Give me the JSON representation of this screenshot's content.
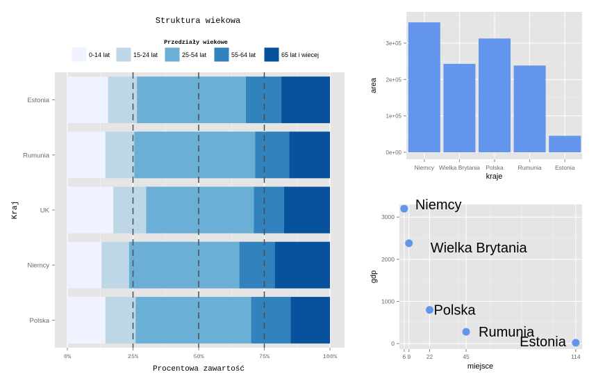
{
  "chart_data": [
    {
      "type": "bar",
      "orientation": "horizontal-stacked",
      "title": "Struktura wiekowa",
      "legend_title": "Przedziały wiekowe",
      "legend_position": "top",
      "xlabel": "Procentowa zawartość",
      "ylabel": "Kraj",
      "xlim": [
        0,
        100
      ],
      "x_ticks": [
        "0%",
        "25%",
        "50%",
        "75%",
        "100%"
      ],
      "reference_lines": [
        25,
        50,
        75
      ],
      "categories": [
        "Estonia",
        "Rumunia",
        "UK",
        "Niemcy",
        "Polska"
      ],
      "series": [
        {
          "name": "0-14 lat",
          "color": "#eff3ff",
          "values": [
            15.5,
            14.5,
            17.5,
            13,
            14.5
          ]
        },
        {
          "name": "15-24 lat",
          "color": "#bdd7e7",
          "values": [
            11,
            11,
            12.5,
            10.5,
            11.5
          ]
        },
        {
          "name": "25-54 lat",
          "color": "#6baed6",
          "values": [
            41.5,
            46,
            41,
            42,
            44
          ]
        },
        {
          "name": "55-64 lat",
          "color": "#3182bd",
          "values": [
            13.5,
            13,
            11.5,
            13.5,
            15
          ]
        },
        {
          "name": "65 lat i wiecej",
          "color": "#08519c",
          "values": [
            18.5,
            15.5,
            17.5,
            21,
            15
          ]
        }
      ],
      "grid": true
    },
    {
      "type": "bar",
      "title": "",
      "xlabel": "kraje",
      "ylabel": "area",
      "categories": [
        "Niemcy",
        "Wielka Brytania",
        "Polska",
        "Rumunia",
        "Estonia"
      ],
      "values": [
        357000,
        243000,
        312700,
        238400,
        45300
      ],
      "ylim": [
        0,
        375000
      ],
      "y_ticks": [
        0,
        100000,
        200000,
        300000
      ],
      "y_tick_labels": [
        "0e+00",
        "1e+05",
        "2e+05",
        "3e+05"
      ],
      "color": "#6495ed",
      "grid": true
    },
    {
      "type": "scatter",
      "title": "",
      "xlabel": "miejsce",
      "ylabel": "gdp",
      "points": [
        {
          "label": "Niemcy",
          "x": 6,
          "y": 3200
        },
        {
          "label": "Wielka Brytania",
          "x": 9,
          "y": 2380
        },
        {
          "label": "Polska",
          "x": 22,
          "y": 800
        },
        {
          "label": "Rumunia",
          "x": 45,
          "y": 280
        },
        {
          "label": "Estonia",
          "x": 114,
          "y": 20
        }
      ],
      "x_ticks": [
        6,
        9,
        22,
        45,
        114
      ],
      "x_tick_labels": [
        "6",
        "9",
        "22",
        "45",
        "114"
      ],
      "y_ticks": [
        0,
        1000,
        2000,
        3000
      ],
      "xlim": [
        3,
        118
      ],
      "ylim": [
        -130,
        3300
      ],
      "color": "#6495ed",
      "grid": true
    }
  ]
}
